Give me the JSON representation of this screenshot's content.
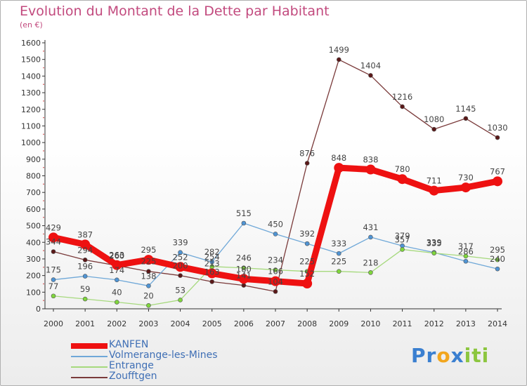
{
  "header": {
    "title": "Evolution du Montant de la Dette par Habitant",
    "unit": "(en €)"
  },
  "colors": {
    "accent": "#c24a7e",
    "axis": "#333333",
    "grid": "#e8e8e8"
  },
  "chart_data": {
    "type": "line",
    "title": "Evolution du Montant de la Dette par Habitant",
    "subtitle": "(en €)",
    "x": [
      "2000",
      "2001",
      "2002",
      "2003",
      "2004",
      "2005",
      "2006",
      "2007",
      "2008",
      "2009",
      "2010",
      "2011",
      "2012",
      "2013",
      "2014"
    ],
    "ylim": [
      0,
      1600
    ],
    "yticks": [
      0,
      100,
      200,
      300,
      400,
      500,
      600,
      700,
      800,
      900,
      1000,
      1100,
      1200,
      1300,
      1400,
      1500,
      1600
    ],
    "grid": false,
    "legend_position": "bottom-left",
    "series": [
      {
        "name": "KANFEN",
        "color": "#ee1111",
        "marker_fill": "#ee1111",
        "thick": true,
        "values": [
          429,
          387,
          263,
          295,
          252,
          213,
          180,
          166,
          152,
          848,
          838,
          780,
          711,
          730,
          767
        ],
        "labels": [
          "429",
          "387",
          "263",
          "295",
          "252",
          "213",
          "180",
          "166",
          "152",
          "848",
          "838",
          "780",
          "711",
          "730",
          "767"
        ]
      },
      {
        "name": "Volmerange-les-Mines",
        "color": "#6fa8d8",
        "marker_fill": "#4f94d4",
        "thick": false,
        "values": [
          175,
          196,
          174,
          138,
          339,
          282,
          515,
          450,
          392,
          333,
          431,
          379,
          339,
          286,
          240
        ],
        "labels": [
          "175",
          "196",
          "174",
          "138",
          "339",
          "282",
          "515",
          "450",
          "392",
          "333",
          "431",
          "379",
          "339",
          "286",
          "240"
        ]
      },
      {
        "name": "Entrange",
        "color": "#a6d97d",
        "marker_fill": "#7fd63c",
        "thick": false,
        "values": [
          77,
          59,
          40,
          20,
          53,
          254,
          246,
          234,
          225,
          225,
          218,
          357,
          335,
          317,
          295
        ],
        "labels": [
          "77",
          "59",
          "40",
          "20",
          "53",
          "254",
          "246",
          "234",
          "225",
          "225",
          "218",
          "357",
          "335",
          "317",
          "295"
        ]
      },
      {
        "name": "Zoufftgen",
        "color": "#7a3a3a",
        "marker_fill": "#5a1818",
        "thick": false,
        "values": [
          344,
          294,
          260,
          225,
          200,
          163,
          141,
          104,
          876,
          1499,
          1404,
          1216,
          1080,
          1145,
          1030
        ],
        "labels": [
          "344",
          "294",
          "260",
          "225",
          "200",
          "163",
          "141",
          "104",
          "876",
          "1499",
          "1404",
          "1216",
          "1080",
          "1145",
          "1030"
        ]
      }
    ]
  },
  "logo": {
    "letters": [
      "P",
      "r",
      "o",
      "x",
      "i",
      "t",
      "i"
    ],
    "colors": [
      "#3a7fd0",
      "#3a7fd0",
      "#f2a61e",
      "#3a7fd0",
      "#8cc63f",
      "#8cc63f",
      "#8cc63f"
    ]
  }
}
